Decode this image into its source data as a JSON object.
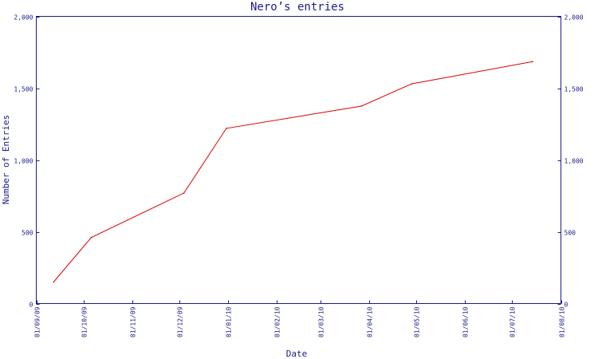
{
  "chart_data": {
    "type": "line",
    "title": "Nero’s entries",
    "xlabel": "Date",
    "ylabel": "Number of Entries",
    "ylim": [
      0,
      2000
    ],
    "y_ticks": [
      0,
      500,
      1000,
      1500,
      2000
    ],
    "y_tick_labels": [
      "0",
      "500",
      "1,000",
      "1,500",
      "2,000"
    ],
    "x_range": [
      "2009-09-01",
      "2010-08-01"
    ],
    "x_ticks": [
      "2009-09-01",
      "2009-10-01",
      "2009-11-01",
      "2009-12-01",
      "2010-01-01",
      "2010-02-01",
      "2010-03-01",
      "2010-04-01",
      "2010-05-01",
      "2010-06-01",
      "2010-07-01",
      "2010-08-01"
    ],
    "x_tick_labels": [
      "01/09/09",
      "01/10/09",
      "01/11/09",
      "01/12/09",
      "01/01/10",
      "01/02/10",
      "01/03/10",
      "01/04/10",
      "01/05/10",
      "01/06/10",
      "01/07/10",
      "01/08/10"
    ],
    "grid": false,
    "right_axis": true,
    "series": [
      {
        "color": "#dd0000",
        "x": [
          "2009-09-12",
          "2009-10-06",
          "2009-12-04",
          "2009-12-31",
          "2010-03-27",
          "2010-04-28",
          "2010-07-14"
        ],
        "y": [
          150,
          460,
          770,
          1220,
          1375,
          1530,
          1685
        ]
      }
    ]
  }
}
